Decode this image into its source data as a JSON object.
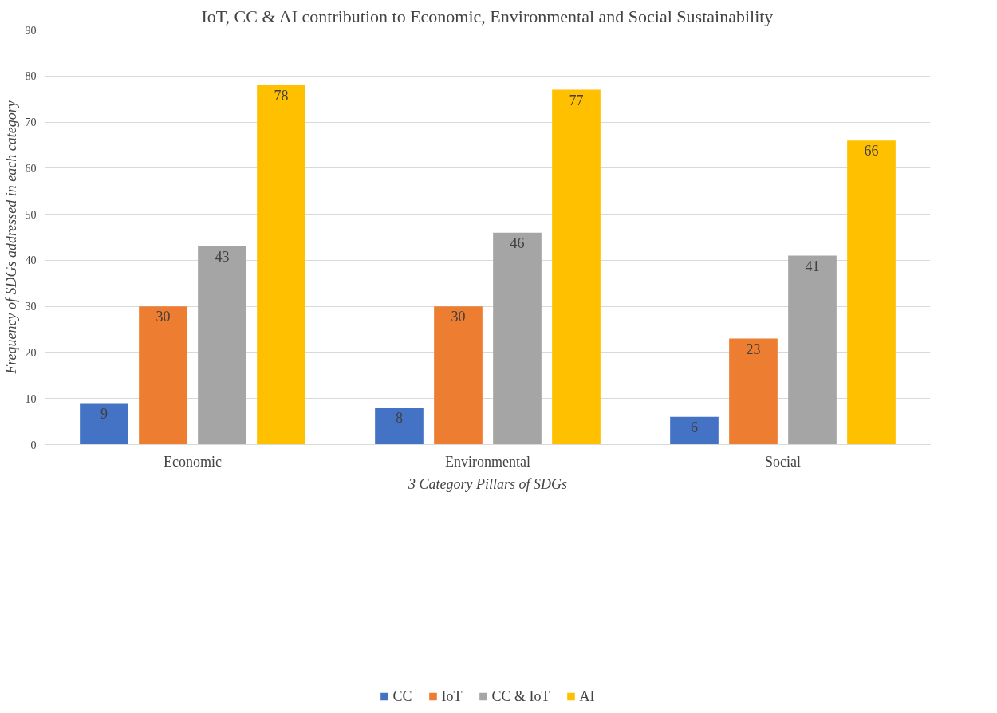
{
  "chart_data": {
    "type": "bar",
    "title": "IoT, CC & AI contribution to Economic, Environmental and Social Sustainability",
    "xlabel": "3 Category Pillars of SDGs",
    "ylabel": "Frequency of SDGs addressed in each category",
    "categories": [
      "Economic",
      "Environmental",
      "Social"
    ],
    "series": [
      {
        "name": "CC",
        "color": "#4472c4",
        "values": [
          9,
          8,
          6
        ]
      },
      {
        "name": "IoT",
        "color": "#ed7d31",
        "values": [
          30,
          30,
          23
        ]
      },
      {
        "name": "CC & IoT",
        "color": "#a5a5a5",
        "values": [
          43,
          46,
          41
        ]
      },
      {
        "name": "AI",
        "color": "#ffc000",
        "values": [
          78,
          77,
          66
        ]
      }
    ],
    "ylim": [
      0,
      90
    ],
    "yticks": [
      0,
      10,
      20,
      30,
      40,
      50,
      60,
      70,
      80,
      90
    ],
    "grid": "y",
    "legend": "bottom",
    "data_labels": true
  }
}
